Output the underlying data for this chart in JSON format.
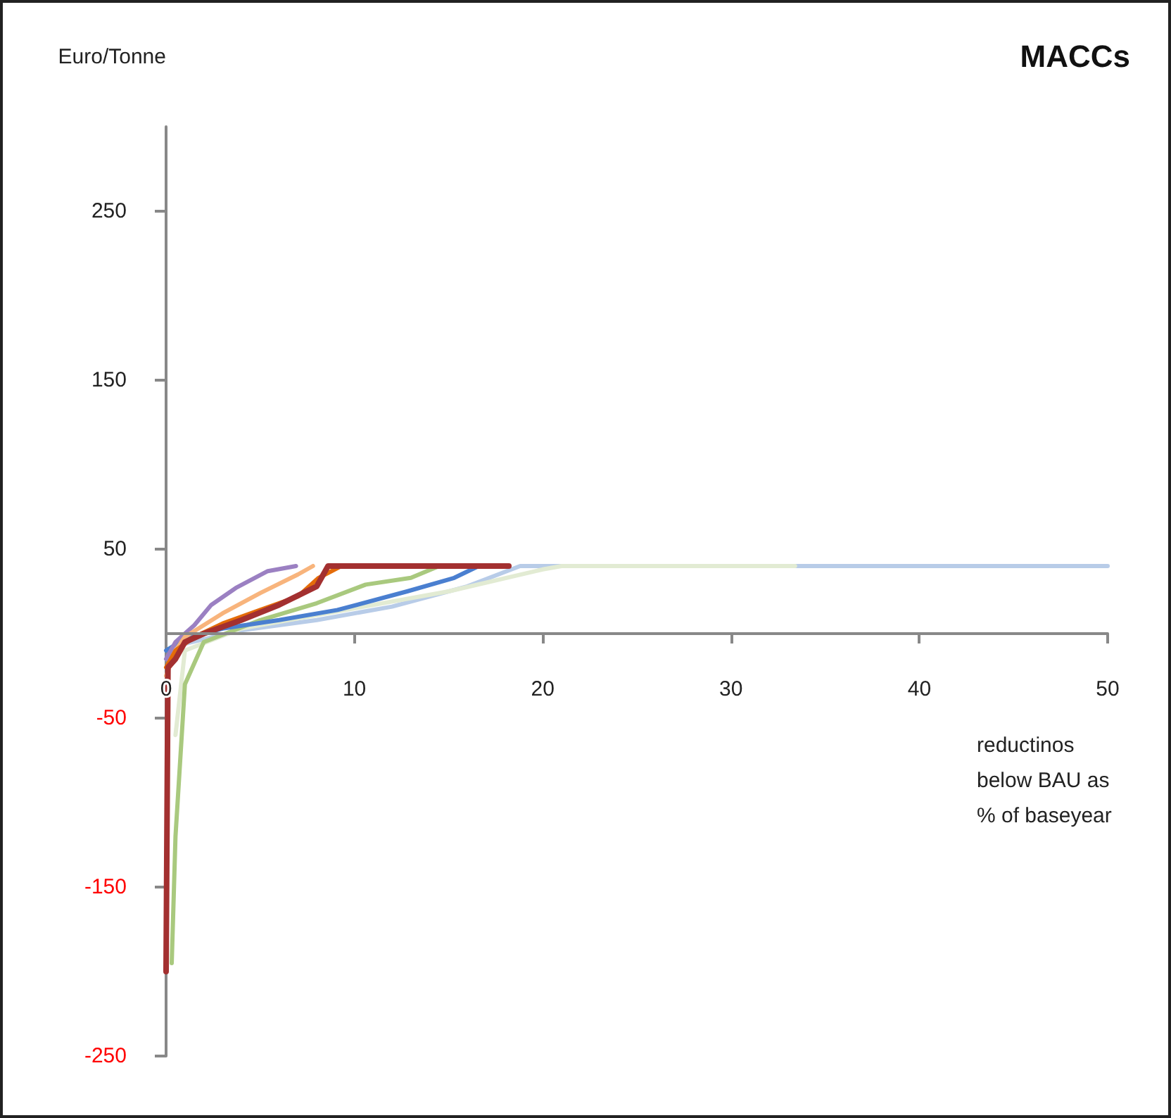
{
  "chart_data": {
    "type": "line",
    "title": "MACCs",
    "ylabel": "Euro/Tonne",
    "xlabel": "reductinos below BAU as % of baseyear",
    "xlim": [
      0,
      50
    ],
    "xticks": [
      0,
      10,
      20,
      30,
      40,
      50
    ],
    "ylim": [
      -250,
      300
    ],
    "yticks": [
      -250,
      -150,
      -50,
      50,
      150,
      250
    ],
    "grid": false,
    "marker": "none",
    "line_style": "solid",
    "series": [
      {
        "color": "#b8cce8",
        "x": [
          0,
          1,
          4,
          8,
          12,
          16,
          18.8,
          50
        ],
        "values": [
          -15,
          -6,
          2,
          8,
          16,
          28,
          40,
          40
        ]
      },
      {
        "color": "#e2ebd3",
        "x": [
          0.5,
          1,
          4,
          10,
          15,
          20,
          21,
          33.4
        ],
        "values": [
          -60,
          -10,
          3,
          15,
          25,
          38,
          40,
          40
        ]
      },
      {
        "color": "#a9c97e",
        "x": [
          0.3,
          0.5,
          1,
          2,
          5,
          8,
          10.6,
          13,
          14.5
        ],
        "values": [
          -195,
          -120,
          -30,
          -5,
          8,
          18,
          29,
          33,
          40
        ]
      },
      {
        "color": "#4a7fd0",
        "x": [
          0,
          1,
          3,
          6,
          9.1,
          12.8,
          15.3,
          16.6
        ],
        "values": [
          -10,
          -3,
          3,
          8,
          14,
          25,
          33,
          40
        ]
      },
      {
        "color": "#9b80c2",
        "x": [
          0,
          0.5,
          1.5,
          2.4,
          3.7,
          5.4,
          6.9
        ],
        "values": [
          -15,
          -5,
          5,
          17,
          27,
          37,
          40
        ]
      },
      {
        "color": "#f8b47c",
        "x": [
          0,
          0.5,
          1,
          3,
          5,
          7,
          7.8
        ],
        "values": [
          -25,
          -10,
          -2,
          12,
          24,
          35,
          40
        ]
      },
      {
        "color": "#e46c0a",
        "x": [
          0,
          0.5,
          1.5,
          3,
          5,
          7,
          8.1,
          9.3
        ],
        "values": [
          -20,
          -10,
          -2,
          6,
          14,
          22,
          33,
          40
        ]
      },
      {
        "color": "#a33030",
        "x": [
          0,
          0.1,
          0.5,
          1,
          2,
          4,
          6,
          8,
          8.6,
          18.2
        ],
        "values": [
          -200,
          -20,
          -15,
          -5,
          0,
          8,
          17,
          28,
          40,
          40
        ]
      }
    ]
  }
}
